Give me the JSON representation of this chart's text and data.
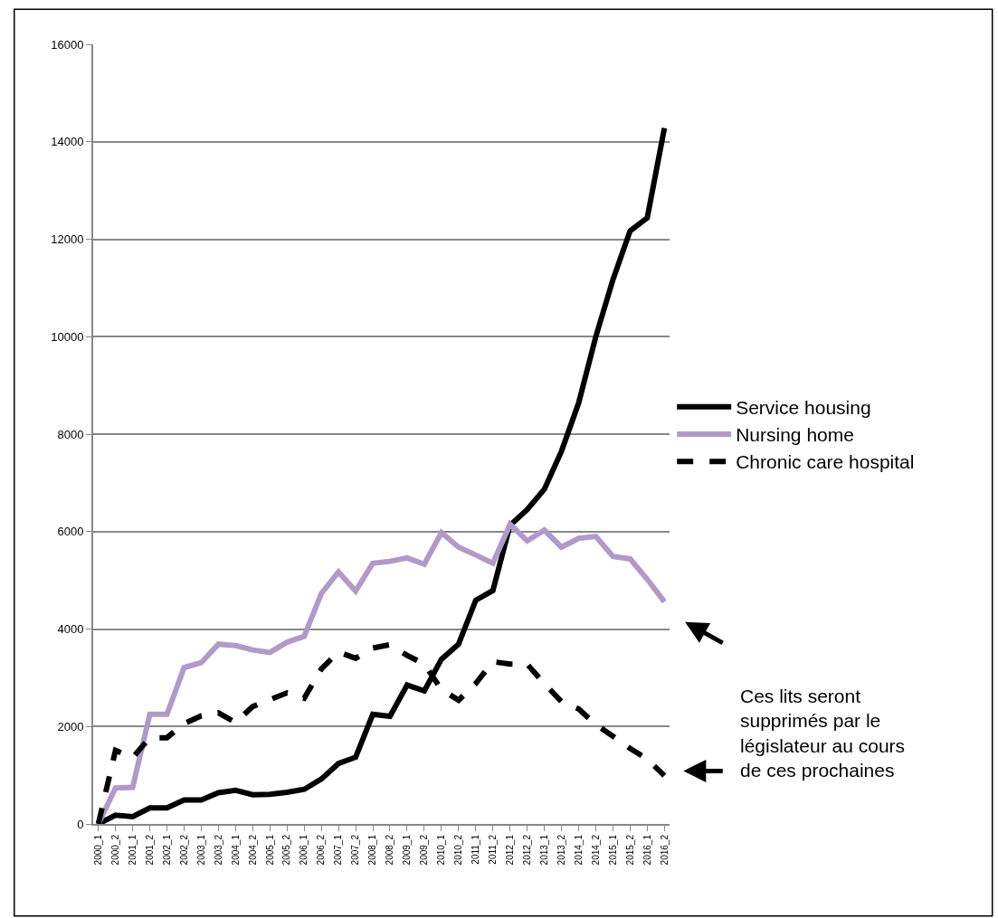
{
  "chart_data": {
    "type": "line",
    "categories": [
      "2000_1",
      "2000_2",
      "2001_1",
      "2001_2",
      "2002_1",
      "2002_2",
      "2003_1",
      "2003_2",
      "2004_1",
      "2004_2",
      "2005_1",
      "2005_2",
      "2006_1",
      "2006_2",
      "2007_1",
      "2007_2",
      "2008_1",
      "2008_2",
      "2009_1",
      "2009_2",
      "2010_1",
      "2010_2",
      "2011_1",
      "2011_2",
      "2012_1",
      "2012_2",
      "2013_1",
      "2013_2",
      "2014_1",
      "2014_2",
      "2015_1",
      "2015_2",
      "2016_1",
      "2016_2"
    ],
    "series": [
      {
        "name": "Service housing",
        "color": "#000000",
        "line_style": "solid",
        "values": [
          0,
          180,
          150,
          330,
          330,
          490,
          490,
          640,
          690,
          600,
          610,
          650,
          710,
          920,
          1240,
          1370,
          2250,
          2210,
          2850,
          2730,
          3380,
          3690,
          4590,
          4790,
          6130,
          6450,
          6870,
          7650,
          8640,
          10000,
          11170,
          12170,
          12440,
          14280
        ]
      },
      {
        "name": "Nursing home",
        "color": "#b09ac9",
        "line_style": "solid",
        "values": [
          0,
          740,
          750,
          2250,
          2250,
          3210,
          3310,
          3690,
          3660,
          3570,
          3520,
          3730,
          3850,
          4730,
          5170,
          4780,
          5350,
          5390,
          5460,
          5330,
          5980,
          5680,
          5520,
          5350,
          6150,
          5810,
          6030,
          5680,
          5860,
          5900,
          5490,
          5440,
          5020,
          4560
        ]
      },
      {
        "name": "Chronic care hospital",
        "color": "#000000",
        "line_style": "dashed",
        "values": [
          0,
          1510,
          1360,
          1770,
          1770,
          2060,
          2220,
          2280,
          2080,
          2410,
          2550,
          2690,
          2580,
          3180,
          3530,
          3400,
          3610,
          3680,
          3460,
          3280,
          2760,
          2540,
          2880,
          3330,
          3280,
          3280,
          2880,
          2510,
          2360,
          2040,
          1800,
          1550,
          1330,
          990
        ]
      }
    ],
    "ylim": [
      0,
      16000
    ],
    "yticks": [
      0,
      2000,
      4000,
      6000,
      8000,
      10000,
      12000,
      14000,
      16000
    ],
    "grid": "y",
    "legend": "right",
    "marker": "none",
    "annotations": [
      "Ces lits seront\nsupprimés par le\nlégislateur au cours\nde ces prochaines"
    ]
  }
}
